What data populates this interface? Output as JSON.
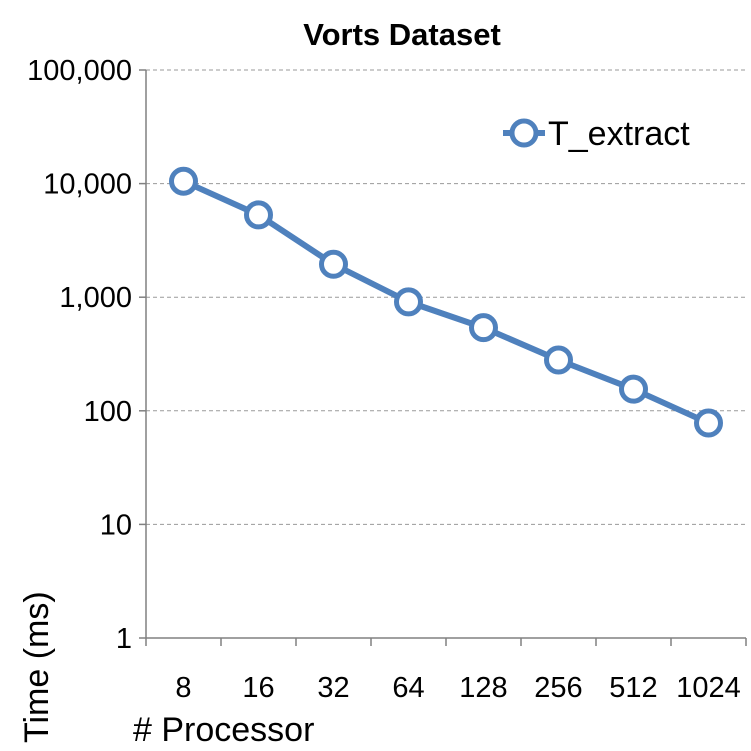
{
  "chart_data": {
    "type": "line",
    "title": "Vorts Dataset",
    "xlabel": "# Processor",
    "ylabel": "Time (ms)",
    "categories": [
      "8",
      "16",
      "32",
      "64",
      "128",
      "256",
      "512",
      "1024"
    ],
    "series": [
      {
        "name": "T_extract",
        "values": [
          10500,
          5300,
          1950,
          910,
          540,
          280,
          155,
          78
        ],
        "color": "#4F81BD"
      }
    ],
    "yscale": "log",
    "ylim": [
      1,
      100000
    ],
    "yticks": [
      {
        "value": 1,
        "label": "1"
      },
      {
        "value": 10,
        "label": "10"
      },
      {
        "value": 100,
        "label": "100"
      },
      {
        "value": 1000,
        "label": "1,000"
      },
      {
        "value": 10000,
        "label": "10,000"
      },
      {
        "value": 100000,
        "label": "100,000"
      }
    ],
    "grid": true,
    "legend": "top-right"
  }
}
